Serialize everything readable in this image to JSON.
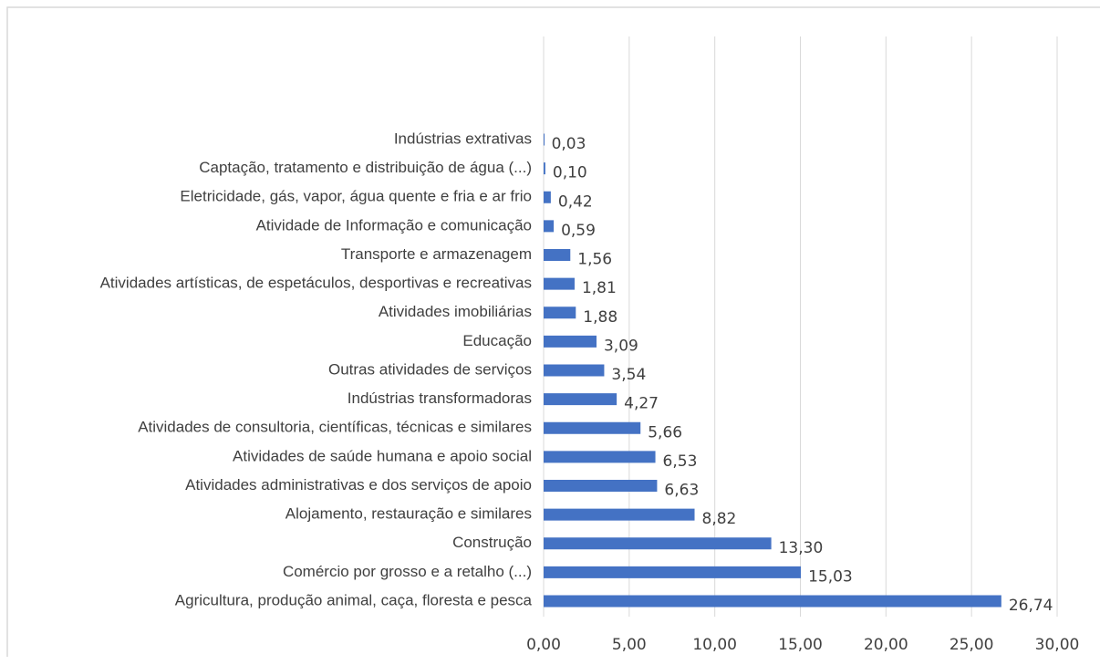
{
  "chart_data": {
    "type": "barh",
    "categories": [
      "Indústrias extrativas",
      "Captação, tratamento e distribuição de água (...)",
      "Eletricidade, gás, vapor, água quente e fria e ar frio",
      "Atividade de Informação e comunicação",
      "Transporte e armazenagem",
      "Atividades artísticas, de espetáculos, desportivas e recreativas",
      "Atividades imobiliárias",
      "Educação",
      "Outras atividades de serviços",
      "Indústrias transformadoras",
      "Atividades de consultoria, científicas, técnicas e similares",
      "Atividades de saúde humana e apoio social",
      "Atividades administrativas e dos serviços de apoio",
      "Alojamento, restauração e similares",
      "Construção",
      "Comércio por grosso e a retalho (...)",
      "Agricultura, produção animal, caça, floresta e pesca"
    ],
    "values": [
      0.03,
      0.1,
      0.42,
      0.59,
      1.56,
      1.81,
      1.88,
      3.09,
      3.54,
      4.27,
      5.66,
      6.53,
      6.63,
      8.82,
      13.3,
      15.03,
      26.74
    ],
    "value_labels": [
      "0,03",
      "0,10",
      "0,42",
      "0,59",
      "1,56",
      "1,81",
      "1,88",
      "3,09",
      "3,54",
      "4,27",
      "5,66",
      "6,53",
      "6,63",
      "8,82",
      "13,30",
      "15,03",
      "26,74"
    ],
    "color": "#4472c4",
    "xlim": [
      0,
      30
    ],
    "xticks": [
      {
        "value": 0,
        "label": "0,00"
      },
      {
        "value": 5,
        "label": "5,00"
      },
      {
        "value": 10,
        "label": "10,00"
      },
      {
        "value": 15,
        "label": "15,00"
      },
      {
        "value": 20,
        "label": "20,00"
      },
      {
        "value": 25,
        "label": "25,00"
      },
      {
        "value": 30,
        "label": "30,00"
      }
    ],
    "grid": true
  }
}
